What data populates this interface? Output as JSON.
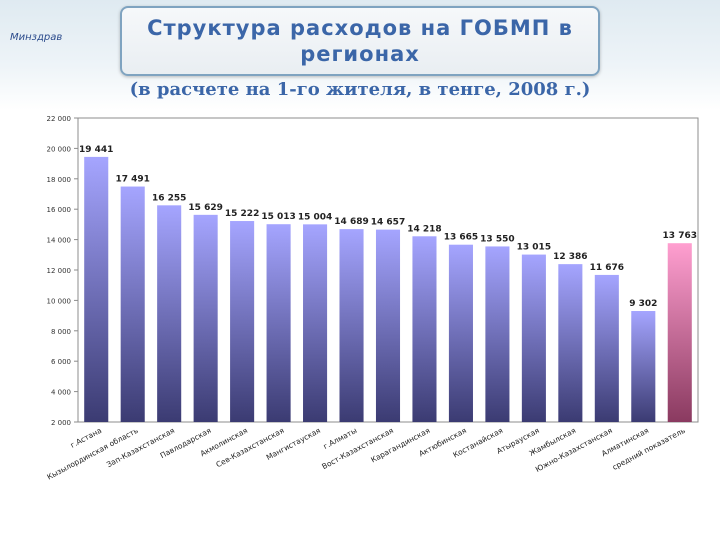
{
  "header": {
    "logo_text": "Минздрав",
    "title": "Структура расходов на ГОБМП в регионах",
    "subtitle": "(в расчете на 1-го жителя, в тенге, 2008 г.)"
  },
  "colors": {
    "bar_top": "#a5a5ff",
    "bar_bottom": "#3b3b72",
    "highlight_top": "#ff9fd0",
    "highlight_bottom": "#8a3a60",
    "title": "#3b66a8"
  },
  "chart_data": {
    "type": "bar",
    "title": "",
    "xlabel": "",
    "ylabel": "",
    "ylim": [
      2000,
      22000
    ],
    "yticks": [
      "2 000",
      "4 000",
      "6 000",
      "8 000",
      "10 000",
      "12 000",
      "14 000",
      "16 000",
      "18 000",
      "20 000",
      "22 000"
    ],
    "grid": false,
    "categories": [
      "г.Астана",
      "Кызылординская область",
      "Зап-Казахстанская",
      "Павлодарская",
      "Акмолинская",
      "Сев-Казахстанская",
      "Мангистауская",
      "г.Алматы",
      "Вост-Казахстанская",
      "Карагандинская",
      "Актюбинская",
      "Костанайская",
      "Атырауская",
      "Жамбылская",
      "Южно-Казахстанская",
      "Алматинская",
      "средний показатель"
    ],
    "values": [
      19441,
      17491,
      16255,
      15629,
      15222,
      15013,
      15004,
      14689,
      14657,
      14218,
      13665,
      13550,
      13015,
      12386,
      11676,
      9302,
      13763
    ],
    "value_labels": [
      "19 441",
      "17 491",
      "16 255",
      "15 629",
      "15 222",
      "15 013",
      "15 004",
      "14 689",
      "14 657",
      "14 218",
      "13 665",
      "13 550",
      "13 015",
      "12 386",
      "11 676",
      "9 302",
      "13 763"
    ],
    "highlight_index": 16
  }
}
